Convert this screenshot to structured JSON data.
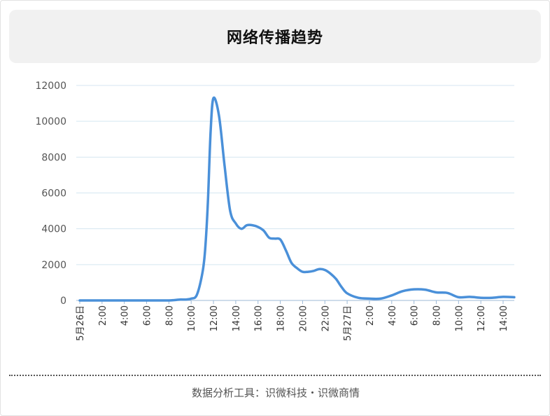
{
  "header": {
    "title": "网络传播趋势"
  },
  "footer": {
    "text": "数据分析工具：识微科技・识微商情"
  },
  "chart_data": {
    "type": "line",
    "title": "网络传播趋势",
    "xlabel": "",
    "ylabel": "",
    "ylim": [
      0,
      12000
    ],
    "yticks": [
      0,
      2000,
      4000,
      6000,
      8000,
      10000,
      12000
    ],
    "grid": true,
    "legend": "none",
    "line_color": "#4a90d9",
    "grid_color": "#d4e6f1",
    "x_tick_labels": [
      "5月26日",
      "2:00",
      "4:00",
      "6:00",
      "8:00",
      "10:00",
      "12:00",
      "14:00",
      "16:00",
      "18:00",
      "20:00",
      "22:00",
      "5月27日",
      "2:00",
      "4:00",
      "6:00",
      "8:00",
      "10:00",
      "12:00",
      "14:00"
    ],
    "x_hours": [
      0,
      1,
      2,
      3,
      4,
      5,
      6,
      7,
      8,
      8.5,
      9,
      9.5,
      10,
      10.5,
      11,
      11.25,
      11.5,
      11.75,
      12,
      12.5,
      13,
      13.5,
      14,
      14.5,
      15,
      15.5,
      16,
      16.5,
      17,
      17.5,
      18,
      18.5,
      19,
      19.5,
      20,
      20.5,
      21,
      21.5,
      22,
      22.5,
      23,
      23.5,
      24,
      25,
      26,
      27,
      28,
      29,
      30,
      31,
      32,
      33,
      34,
      35,
      36,
      37,
      38,
      39
    ],
    "values": [
      0,
      0,
      0,
      0,
      0,
      0,
      0,
      0,
      0,
      20,
      50,
      50,
      100,
      300,
      1500,
      2800,
      5500,
      9500,
      11300,
      10300,
      7500,
      5000,
      4300,
      4000,
      4200,
      4200,
      4100,
      3900,
      3500,
      3450,
      3400,
      2800,
      2100,
      1800,
      1600,
      1600,
      1650,
      1750,
      1700,
      1500,
      1200,
      750,
      400,
      150,
      100,
      100,
      280,
      520,
      620,
      600,
      450,
      420,
      180,
      200,
      150,
      150,
      200,
      180
    ]
  }
}
